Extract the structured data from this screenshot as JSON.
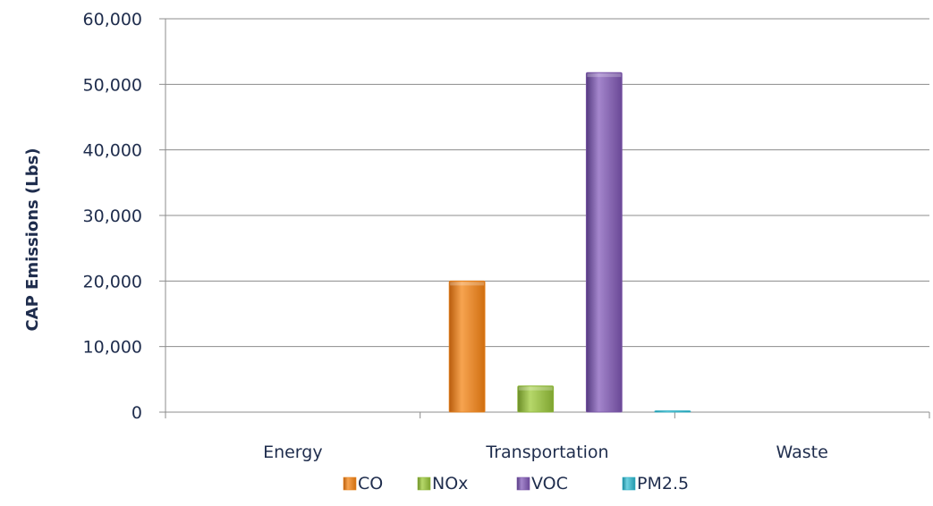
{
  "chart_data": {
    "type": "bar",
    "title": "",
    "xlabel": "",
    "ylabel": "CAP Emissions (Lbs)",
    "ylim": [
      0,
      60000
    ],
    "yticks": [
      0,
      10000,
      20000,
      30000,
      40000,
      50000,
      60000
    ],
    "ytick_labels": [
      "0",
      "10,000",
      "20,000",
      "30,000",
      "40,000",
      "50,000",
      "60,000"
    ],
    "categories": [
      "Energy",
      "Transportation",
      "Waste"
    ],
    "series": [
      {
        "name": "CO",
        "color": "#e8821c",
        "values": [
          0,
          20000,
          0
        ]
      },
      {
        "name": "NOx",
        "color": "#8fb83a",
        "values": [
          0,
          4000,
          0
        ]
      },
      {
        "name": "VOC",
        "color": "#7a55a8",
        "values": [
          0,
          51800,
          0
        ]
      },
      {
        "name": "PM2.5",
        "color": "#2aaec4",
        "values": [
          0,
          200,
          0
        ]
      }
    ],
    "grid": true,
    "legend": "bottom"
  }
}
